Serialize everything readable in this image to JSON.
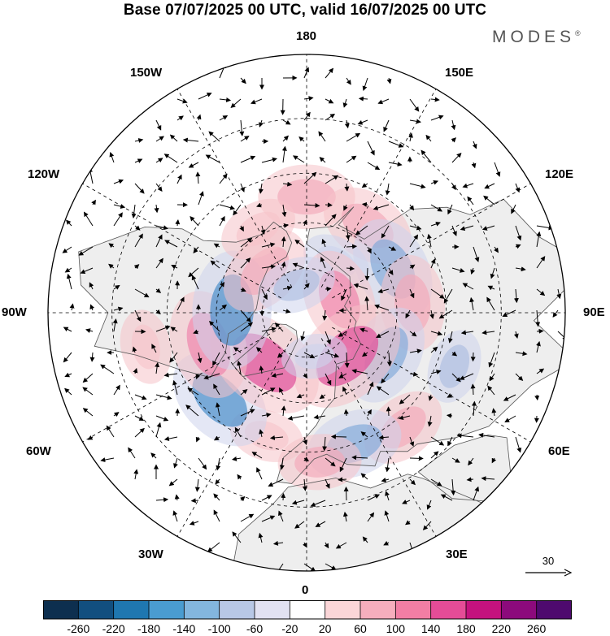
{
  "title": "Base 07/07/2025 00 UTC, valid 16/07/2025 00 UTC",
  "brand": {
    "name": "MODES",
    "mark": "®"
  },
  "longitude_labels": {
    "top": "180",
    "bottom": "0",
    "left": "90W",
    "right": "90E",
    "upper_left_1": "150W",
    "upper_left_2": "120W",
    "lower_left_1": "60W",
    "lower_left_2": "30W",
    "upper_right_1": "150E",
    "upper_right_2": "120E",
    "lower_right_1": "60E",
    "lower_right_2": "30E"
  },
  "vector_scale": {
    "label": "30"
  },
  "colorbar": {
    "colors": [
      "#0d2f4f",
      "#124f7f",
      "#1f77b0",
      "#4a9cd0",
      "#83b6de",
      "#b8c8e6",
      "#e2e2f2",
      "#ffffff",
      "#fbd6d8",
      "#f6aebd",
      "#f27ea4",
      "#e44c97",
      "#c4127e",
      "#8c0a7c",
      "#4e0a6e"
    ],
    "ticks": [
      "-260",
      "-220",
      "-180",
      "-140",
      "-100",
      "-60",
      "-20",
      "20",
      "60",
      "100",
      "140",
      "180",
      "220",
      "260"
    ]
  },
  "map": {
    "projection": "north polar stereographic",
    "land_color": "#eeeeee",
    "anomaly_centers": [
      {
        "lon": 180,
        "lat": 52,
        "value": 110
      },
      {
        "lon": 145,
        "lat": 55,
        "value": 110
      },
      {
        "lon": 117,
        "lat": 58,
        "value": -130
      },
      {
        "lon": 150,
        "lat": 70,
        "value": -50
      },
      {
        "lon": 112,
        "lat": 78,
        "value": 120
      },
      {
        "lon": 95,
        "lat": 55,
        "value": 110
      },
      {
        "lon": 62,
        "lat": 60,
        "value": -120
      },
      {
        "lon": 43,
        "lat": 70,
        "value": 170
      },
      {
        "lon": 40,
        "lat": 42,
        "value": 90
      },
      {
        "lon": 20,
        "lat": 45,
        "value": -110
      },
      {
        "lon": 5,
        "lat": 42,
        "value": 80
      },
      {
        "lon": -18,
        "lat": 48,
        "value": 60
      },
      {
        "lon": -45,
        "lat": 50,
        "value": -140
      },
      {
        "lon": -40,
        "lat": 68,
        "value": 170
      },
      {
        "lon": -72,
        "lat": 56,
        "value": 140
      },
      {
        "lon": -92,
        "lat": 65,
        "value": -160
      },
      {
        "lon": -135,
        "lat": 70,
        "value": 110
      },
      {
        "lon": -150,
        "lat": 58,
        "value": 70
      },
      {
        "lon": -160,
        "lat": 80,
        "value": -70
      },
      {
        "lon": -78,
        "lat": 38,
        "value": 60
      },
      {
        "lon": 10,
        "lat": 75,
        "value": -40
      },
      {
        "lon": 70,
        "lat": 40,
        "value": -60
      }
    ]
  }
}
